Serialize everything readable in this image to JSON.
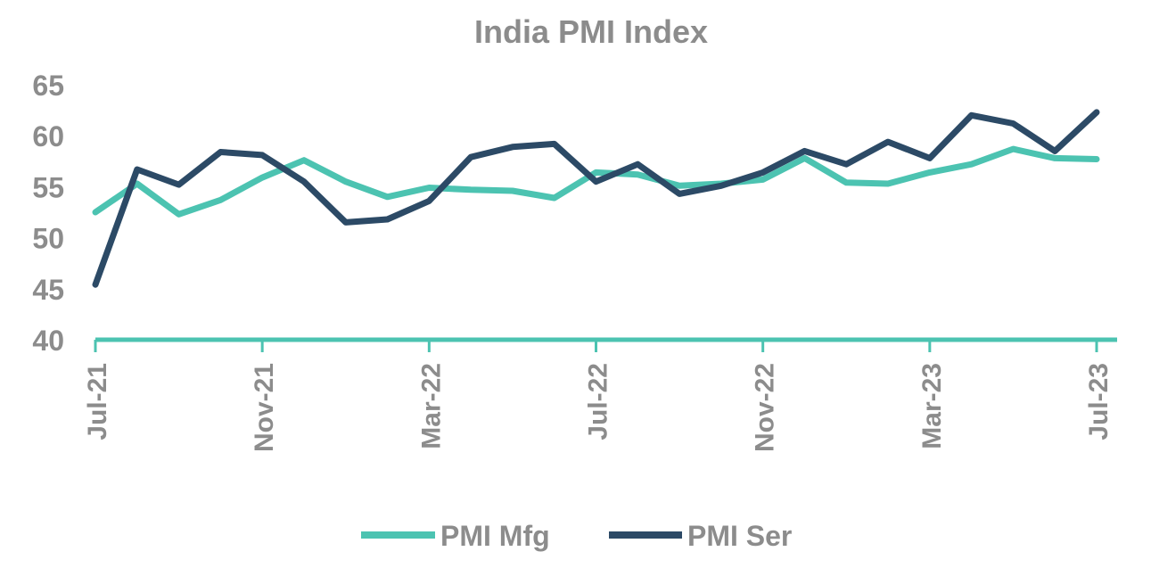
{
  "chart_data": {
    "type": "line",
    "title": "India PMI Index",
    "xlabel": "",
    "ylabel": "",
    "ylim": [
      40,
      65
    ],
    "yticks": [
      "40",
      "45",
      "50",
      "55",
      "60",
      "65"
    ],
    "xtick_labels": [
      "Jul-21",
      "Nov-21",
      "Mar-22",
      "Jul-22",
      "Nov-22",
      "Mar-23",
      "Jul-23"
    ],
    "categories": [
      "Jul-21",
      "Aug-21",
      "Sep-21",
      "Oct-21",
      "Nov-21",
      "Dec-21",
      "Jan-22",
      "Feb-22",
      "Mar-22",
      "Apr-22",
      "May-22",
      "Jun-22",
      "Jul-22",
      "Aug-22",
      "Sep-22",
      "Oct-22",
      "Nov-22",
      "Dec-22",
      "Jan-23",
      "Feb-23",
      "Mar-23",
      "Apr-23",
      "May-23",
      "Jun-23",
      "Jul-23"
    ],
    "series": [
      {
        "name": "PMI Mfg",
        "color": "#4cc3b1",
        "values": [
          52.5,
          55.3,
          52.3,
          53.7,
          55.9,
          57.6,
          55.5,
          54.0,
          54.9,
          54.7,
          54.6,
          53.9,
          56.4,
          56.2,
          55.1,
          55.3,
          55.7,
          57.8,
          55.4,
          55.3,
          56.4,
          57.2,
          58.7,
          57.8,
          57.7
        ]
      },
      {
        "name": "PMI Ser",
        "color": "#2c4a66",
        "values": [
          45.4,
          56.7,
          55.2,
          58.4,
          58.1,
          55.5,
          51.5,
          51.8,
          53.6,
          57.9,
          58.9,
          59.2,
          55.5,
          57.2,
          54.3,
          55.1,
          56.4,
          58.5,
          57.2,
          59.4,
          57.8,
          62.0,
          61.2,
          58.5,
          62.3
        ]
      }
    ],
    "axis_color": "#4cc3b1",
    "grid": false,
    "legend_position": "bottom"
  }
}
